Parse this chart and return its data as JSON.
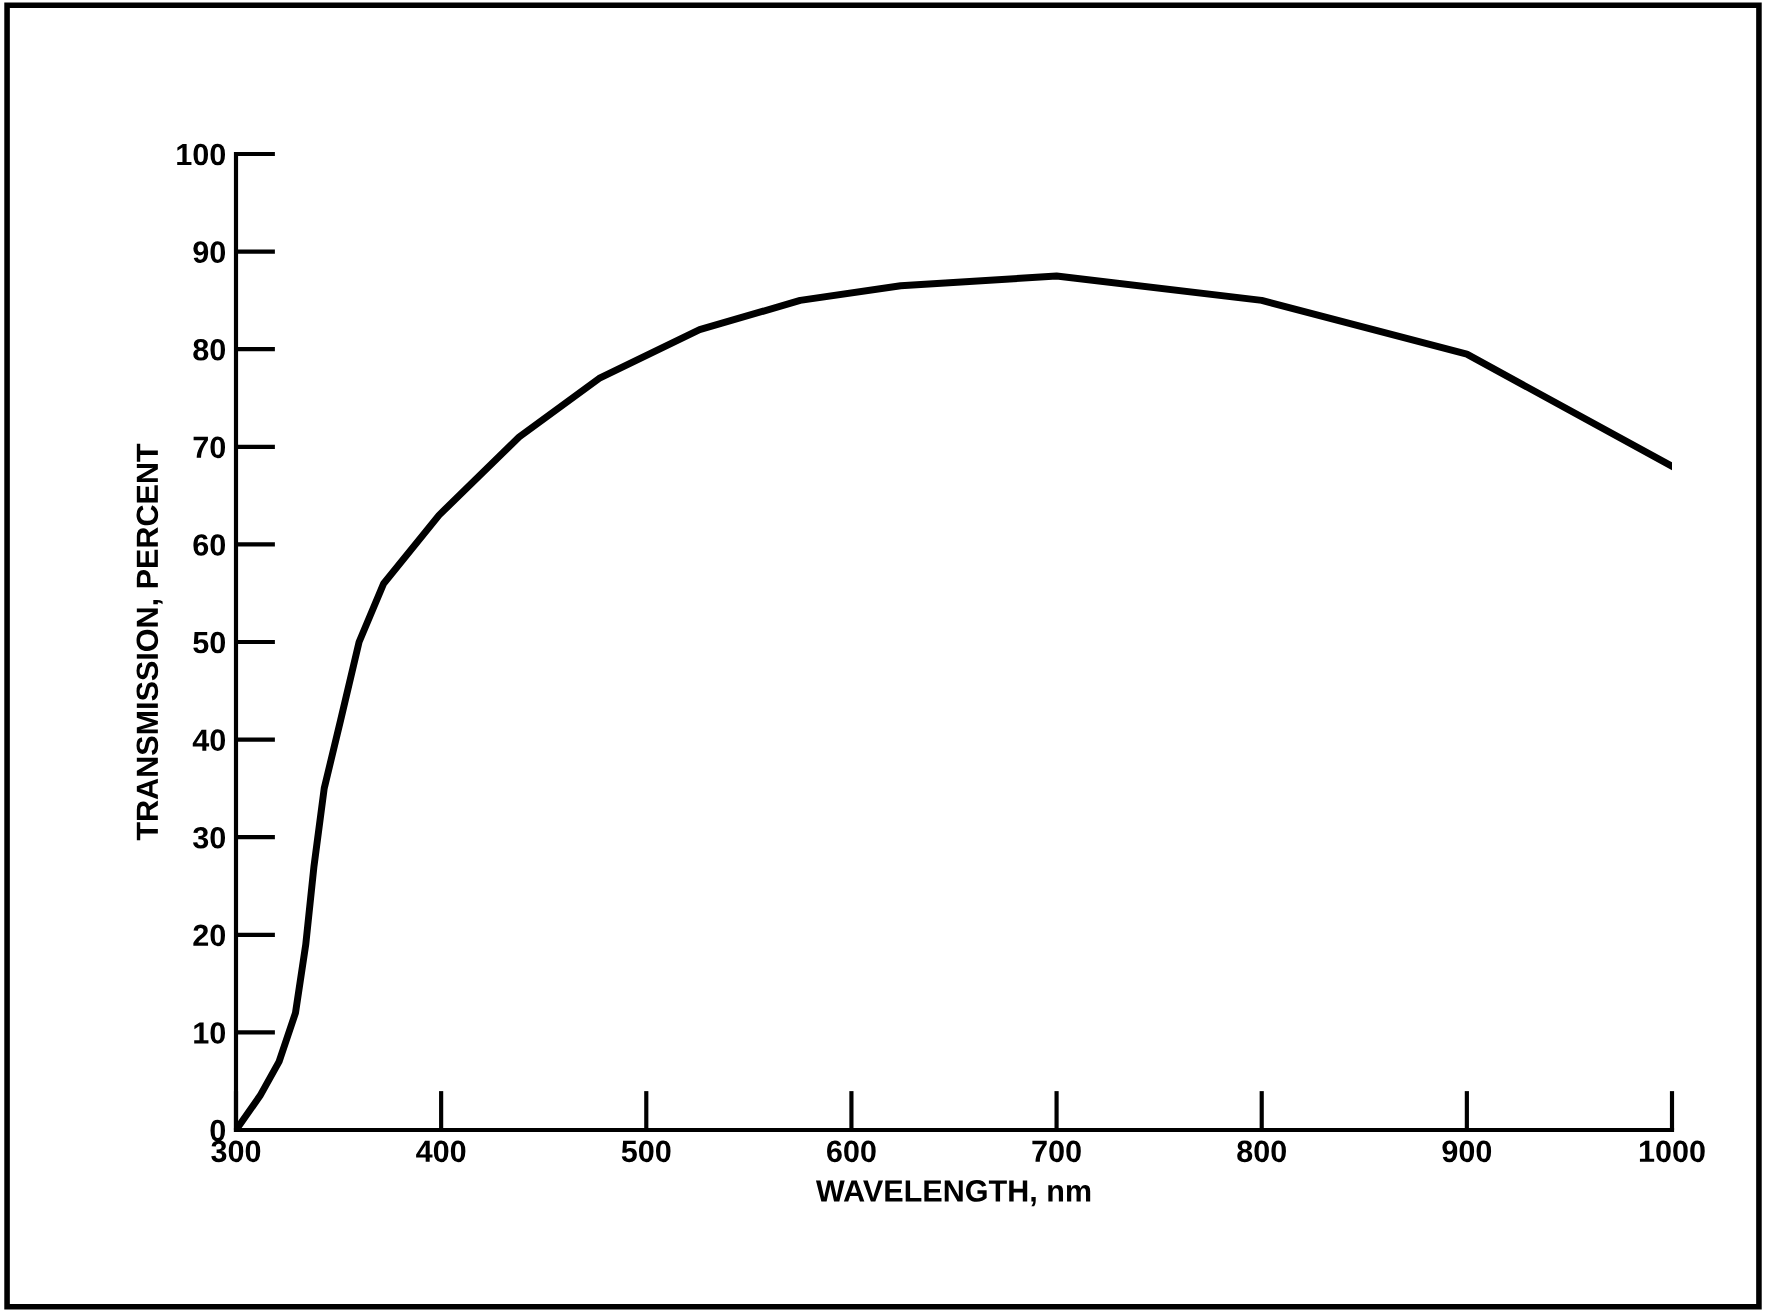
{
  "chart_data": {
    "type": "line",
    "xlabel": "WAVELENGTH, nm",
    "ylabel": "TRANSMISSION, PERCENT",
    "x": [
      300,
      311.7,
      321,
      329,
      334,
      338,
      343,
      351,
      360,
      372,
      399,
      438,
      477,
      526,
      575,
      624,
      700,
      800,
      900,
      1000
    ],
    "series": [
      {
        "color": "#000000",
        "values": [
          0,
          3.5,
          7,
          12,
          19,
          27,
          35,
          42,
          50,
          56,
          63,
          71,
          77,
          82,
          85,
          86.5,
          87.5,
          85,
          79.5,
          68
        ]
      }
    ],
    "xlim": [
      300,
      1000
    ],
    "ylim": [
      0,
      100
    ],
    "xticks": [
      300,
      400,
      500,
      600,
      700,
      800,
      900,
      1000
    ],
    "yticks": [
      0,
      10,
      20,
      30,
      40,
      50,
      60,
      70,
      80,
      90,
      100
    ],
    "grid": false,
    "legend": false,
    "marker": "none",
    "line_style": "solid"
  }
}
